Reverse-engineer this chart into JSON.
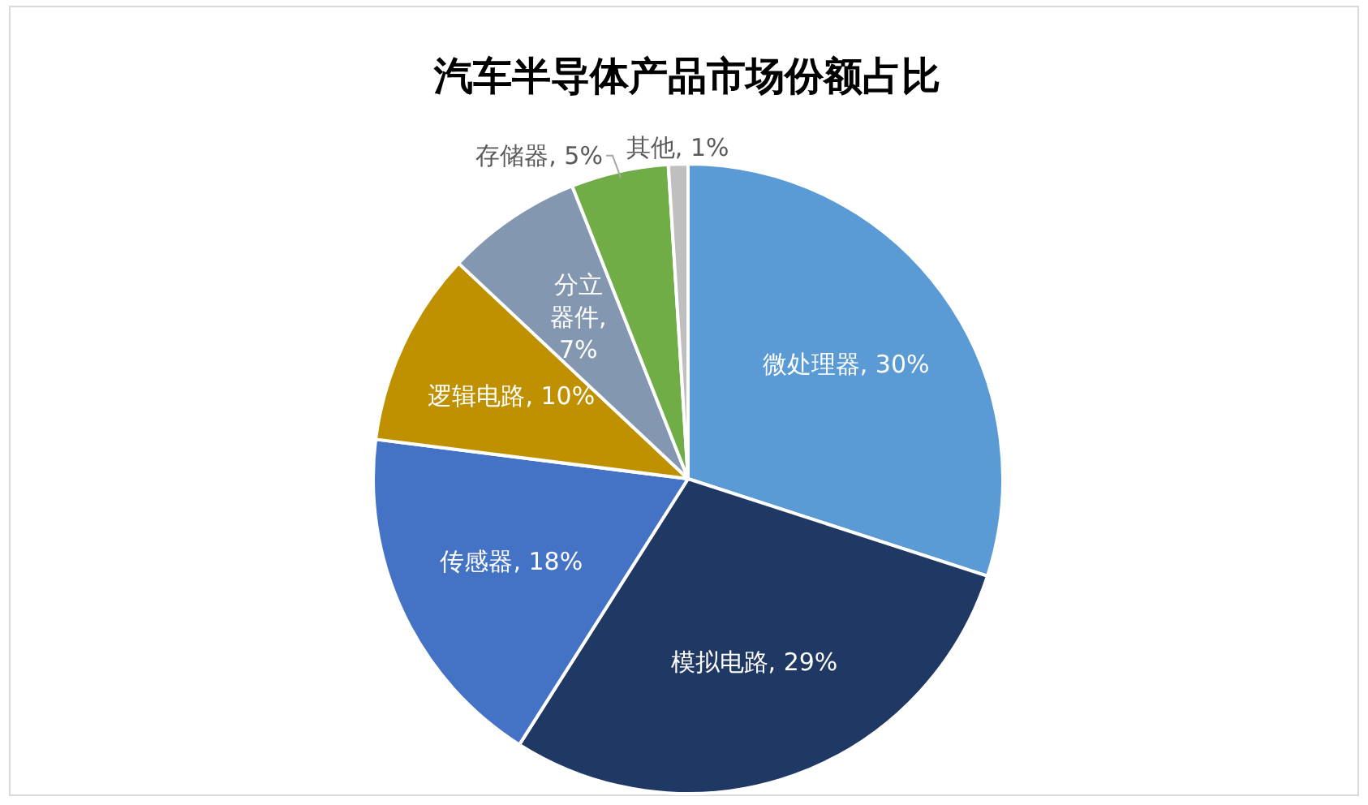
{
  "chart_data": {
    "type": "pie",
    "title": "汽车半导体产品市场份额占比",
    "categories": [
      "微处理器",
      "模拟电路",
      "传感器",
      "逻辑电路",
      "分立器件",
      "存储器",
      "其他"
    ],
    "values": [
      30,
      29,
      18,
      10,
      7,
      5,
      1
    ],
    "value_labels": [
      ", 30%",
      ", 29%",
      ", 18%",
      ", 10%",
      ", 7%",
      ", 5%",
      ", 1%"
    ],
    "colors": [
      "#5b9bd5",
      "#203864",
      "#4472c4",
      "#bf9000",
      "#8497b0",
      "#70ad47",
      "#bfbfbf"
    ]
  }
}
